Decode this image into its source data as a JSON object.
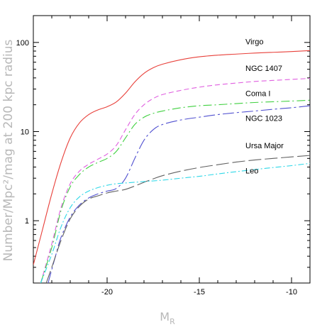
{
  "chart_data": {
    "type": "line",
    "xlabel": "M",
    "xlabel_sub": "R",
    "ylabel": "Number/Mpc²/mag at 200 kpc radius",
    "xlim": [
      -24,
      -9
    ],
    "ylim": [
      0.2,
      200
    ],
    "y_scale": "log",
    "x_ticks": [
      -20,
      -15,
      -10
    ],
    "x_tick_labels": [
      "-20",
      "-15",
      "-10"
    ],
    "y_ticks": [
      1,
      10,
      100
    ],
    "y_tick_labels": [
      "1",
      "10",
      "100"
    ],
    "grid": false,
    "legend": "labels placed at right end of each curve",
    "series": [
      {
        "name": "Virgo",
        "color": "#e8403a",
        "dash": "solid",
        "points": [
          [
            -24,
            0.32
          ],
          [
            -23.5,
            0.8
          ],
          [
            -23,
            2.0
          ],
          [
            -22.5,
            4.5
          ],
          [
            -22,
            8.5
          ],
          [
            -21.5,
            12.5
          ],
          [
            -21,
            15.5
          ],
          [
            -20.5,
            17.5
          ],
          [
            -20,
            19
          ],
          [
            -19.5,
            21.5
          ],
          [
            -19,
            27
          ],
          [
            -18.5,
            36
          ],
          [
            -18,
            45
          ],
          [
            -17.5,
            52
          ],
          [
            -17,
            57
          ],
          [
            -16,
            64
          ],
          [
            -15,
            69
          ],
          [
            -14,
            72
          ],
          [
            -13,
            74
          ],
          [
            -12,
            76
          ],
          [
            -11,
            77.5
          ],
          [
            -10,
            79
          ],
          [
            -9,
            81
          ]
        ]
      },
      {
        "name": "NGC 1407",
        "color": "#e060e0",
        "dash": "7,4",
        "points": [
          [
            -23.6,
            0.2
          ],
          [
            -23,
            0.55
          ],
          [
            -22.5,
            1.4
          ],
          [
            -22,
            2.6
          ],
          [
            -21.5,
            3.6
          ],
          [
            -21,
            4.3
          ],
          [
            -20.5,
            4.9
          ],
          [
            -20,
            5.6
          ],
          [
            -19.5,
            7.0
          ],
          [
            -19,
            10.5
          ],
          [
            -18.5,
            15.5
          ],
          [
            -18,
            20
          ],
          [
            -17.5,
            23.5
          ],
          [
            -17,
            26
          ],
          [
            -16,
            29
          ],
          [
            -15,
            31.5
          ],
          [
            -14,
            33.5
          ],
          [
            -13,
            35
          ],
          [
            -12,
            36.5
          ],
          [
            -11,
            37.5
          ],
          [
            -10,
            38.5
          ],
          [
            -9,
            39.5
          ]
        ]
      },
      {
        "name": "Coma I",
        "color": "#40d040",
        "dash": "12,4,2,4",
        "points": [
          [
            -23.6,
            0.2
          ],
          [
            -23,
            0.5
          ],
          [
            -22.5,
            1.3
          ],
          [
            -22,
            2.4
          ],
          [
            -21.5,
            3.3
          ],
          [
            -21,
            4.0
          ],
          [
            -20.5,
            4.5
          ],
          [
            -20,
            5.0
          ],
          [
            -19.5,
            6.0
          ],
          [
            -19,
            8.5
          ],
          [
            -18.5,
            12
          ],
          [
            -18,
            14.5
          ],
          [
            -17.5,
            16
          ],
          [
            -17,
            17
          ],
          [
            -16,
            18.5
          ],
          [
            -15,
            19.5
          ],
          [
            -14,
            20
          ],
          [
            -13,
            20.6
          ],
          [
            -12,
            21.2
          ],
          [
            -11,
            21.6
          ],
          [
            -10,
            22
          ],
          [
            -9,
            22.5
          ]
        ]
      },
      {
        "name": "NGC 1023",
        "color": "#5050d0",
        "dash": "16,4,3,4",
        "points": [
          [
            -23.2,
            0.2
          ],
          [
            -22.8,
            0.4
          ],
          [
            -22.5,
            0.65
          ],
          [
            -22,
            1.1
          ],
          [
            -21.5,
            1.5
          ],
          [
            -21,
            1.8
          ],
          [
            -20.5,
            2.0
          ],
          [
            -20,
            2.15
          ],
          [
            -19.5,
            2.3
          ],
          [
            -19,
            3.0
          ],
          [
            -18.5,
            5.0
          ],
          [
            -18,
            8.0
          ],
          [
            -17.5,
            10.5
          ],
          [
            -17,
            12
          ],
          [
            -16,
            13.5
          ],
          [
            -15,
            14.5
          ],
          [
            -14,
            15.5
          ],
          [
            -13,
            16.3
          ],
          [
            -12,
            17
          ],
          [
            -11,
            17.8
          ],
          [
            -10,
            18.5
          ],
          [
            -9,
            19.5
          ]
        ]
      },
      {
        "name": "Ursa Major",
        "color": "#606060",
        "dash": "18,5",
        "points": [
          [
            -23.3,
            0.2
          ],
          [
            -23,
            0.3
          ],
          [
            -22.5,
            0.6
          ],
          [
            -22,
            1.05
          ],
          [
            -21.5,
            1.45
          ],
          [
            -21,
            1.75
          ],
          [
            -20.5,
            1.9
          ],
          [
            -20,
            2.05
          ],
          [
            -19.5,
            2.15
          ],
          [
            -19,
            2.25
          ],
          [
            -18.5,
            2.45
          ],
          [
            -18,
            2.7
          ],
          [
            -17.5,
            2.95
          ],
          [
            -17,
            3.2
          ],
          [
            -16,
            3.6
          ],
          [
            -15,
            3.95
          ],
          [
            -14,
            4.25
          ],
          [
            -13,
            4.55
          ],
          [
            -12,
            4.8
          ],
          [
            -11,
            5.0
          ],
          [
            -10,
            5.2
          ],
          [
            -9,
            5.4
          ]
        ]
      },
      {
        "name": "Leo",
        "color": "#30d8e8",
        "dash": "8,3,2,3",
        "points": [
          [
            -23.6,
            0.2
          ],
          [
            -23,
            0.42
          ],
          [
            -22.5,
            0.85
          ],
          [
            -22,
            1.4
          ],
          [
            -21.5,
            1.85
          ],
          [
            -21,
            2.15
          ],
          [
            -20.5,
            2.35
          ],
          [
            -20,
            2.5
          ],
          [
            -19.5,
            2.6
          ],
          [
            -19,
            2.65
          ],
          [
            -18.5,
            2.7
          ],
          [
            -18,
            2.75
          ],
          [
            -17,
            2.85
          ],
          [
            -16,
            3.0
          ],
          [
            -15,
            3.15
          ],
          [
            -14,
            3.35
          ],
          [
            -13,
            3.55
          ],
          [
            -12,
            3.75
          ],
          [
            -11,
            3.95
          ],
          [
            -10,
            4.15
          ],
          [
            -9,
            4.4
          ]
        ]
      }
    ]
  }
}
